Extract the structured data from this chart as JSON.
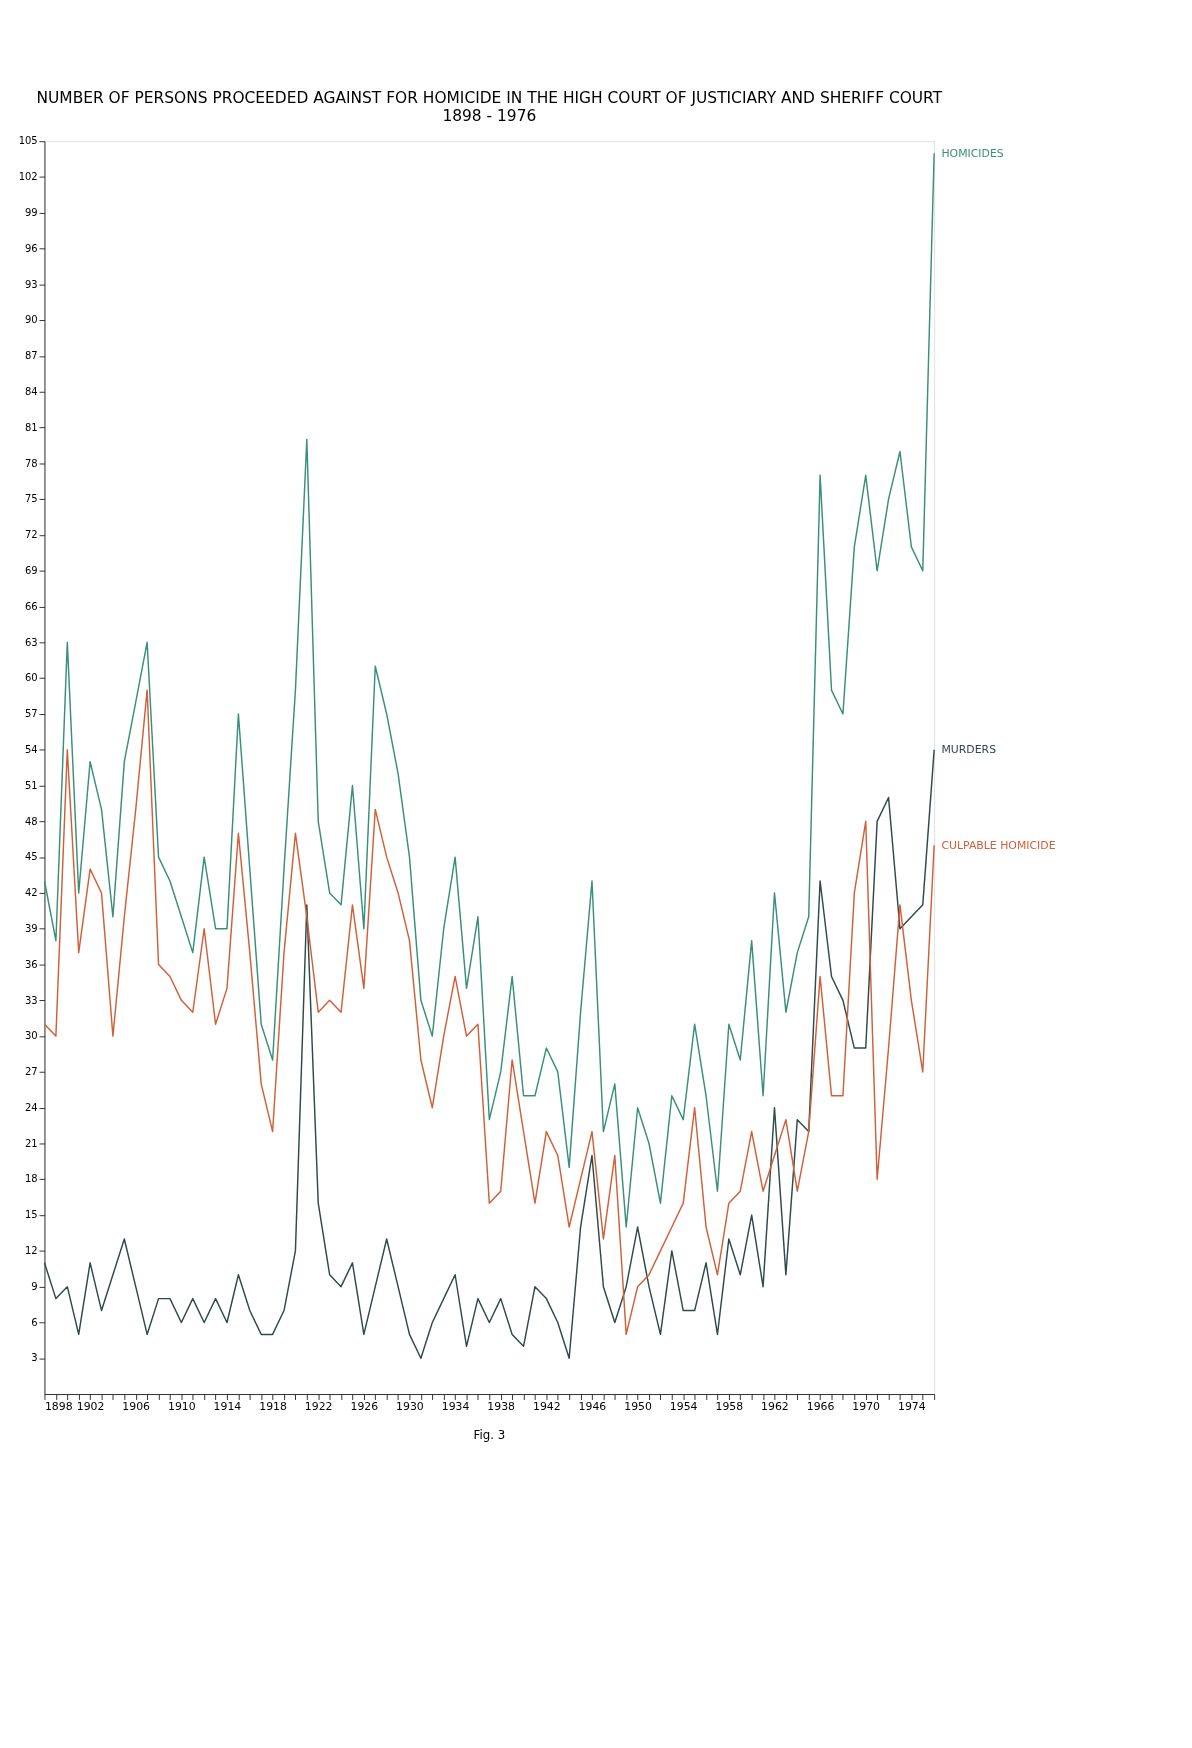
{
  "chart_data": {
    "type": "line",
    "title": "NUMBER OF PERSONS PROCEEDED AGAINST FOR HOMICIDE IN THE HIGH COURT OF JUSTICIARY AND SHERIFF COURT",
    "subtitle": "1898 - 1976",
    "x": [
      1898,
      1899,
      1900,
      1901,
      1902,
      1903,
      1904,
      1905,
      1906,
      1907,
      1908,
      1909,
      1910,
      1911,
      1912,
      1913,
      1914,
      1915,
      1916,
      1917,
      1918,
      1919,
      1920,
      1921,
      1922,
      1923,
      1924,
      1925,
      1926,
      1927,
      1928,
      1929,
      1930,
      1931,
      1932,
      1933,
      1934,
      1935,
      1936,
      1937,
      1938,
      1939,
      1940,
      1941,
      1942,
      1943,
      1944,
      1945,
      1946,
      1947,
      1948,
      1949,
      1950,
      1951,
      1952,
      1953,
      1954,
      1955,
      1956,
      1957,
      1958,
      1959,
      1960,
      1961,
      1962,
      1963,
      1964,
      1965,
      1966,
      1967,
      1968,
      1969,
      1970,
      1971,
      1972,
      1973,
      1974,
      1975,
      1976
    ],
    "series": [
      {
        "name": "HOMICIDES",
        "color": "#3a8f7a",
        "values": [
          43,
          38,
          63,
          42,
          53,
          49,
          40,
          53,
          58,
          63,
          45,
          43,
          40,
          37,
          45,
          39,
          39,
          57,
          44,
          31,
          28,
          44,
          59,
          80,
          48,
          42,
          41,
          51,
          39,
          61,
          57,
          52,
          45,
          33,
          30,
          39,
          45,
          34,
          40,
          23,
          27,
          35,
          25,
          25,
          29,
          27,
          19,
          32,
          43,
          22,
          26,
          14,
          24,
          21,
          16,
          25,
          23,
          31,
          25,
          17,
          31,
          28,
          38,
          25,
          42,
          32,
          37,
          40,
          77,
          59,
          57,
          71,
          77,
          69,
          75,
          79,
          71,
          69,
          104
        ]
      },
      {
        "name": "MURDERS",
        "color": "#2f4a4a",
        "values": [
          11,
          8,
          9,
          5,
          11,
          7,
          10,
          13,
          9,
          5,
          8,
          8,
          6,
          8,
          6,
          8,
          6,
          10,
          7,
          5,
          5,
          7,
          12,
          41,
          16,
          10,
          9,
          11,
          5,
          9,
          13,
          9,
          5,
          3,
          6,
          8,
          10,
          4,
          8,
          6,
          8,
          5,
          4,
          9,
          8,
          6,
          3,
          14,
          20,
          9,
          6,
          9,
          14,
          9,
          5,
          12,
          7,
          7,
          11,
          5,
          13,
          10,
          15,
          9,
          24,
          10,
          23,
          22,
          43,
          35,
          33,
          29,
          29,
          48,
          50,
          39,
          40,
          41,
          54
        ]
      },
      {
        "name": "CULPABLE HOMICIDE",
        "color": "#d0603a",
        "values": [
          31,
          30,
          54,
          37,
          44,
          42,
          30,
          40,
          49,
          59,
          36,
          35,
          33,
          32,
          39,
          31,
          34,
          47,
          37,
          26,
          22,
          37,
          47,
          40,
          32,
          33,
          32,
          41,
          34,
          49,
          45,
          42,
          38,
          28,
          24,
          30,
          35,
          30,
          31,
          16,
          17,
          28,
          22,
          16,
          22,
          20,
          14,
          18,
          22,
          13,
          20,
          5,
          9,
          10,
          12,
          14,
          16,
          24,
          14,
          10,
          16,
          17,
          22,
          17,
          20,
          23,
          17,
          22,
          35,
          25,
          25,
          42,
          48,
          18,
          29,
          41,
          33,
          27,
          46
        ]
      }
    ],
    "xlim": [
      1898,
      1976
    ],
    "xticks": [
      1898,
      {
        "value": 1899,
        "label": null
      },
      {
        "value": 1900,
        "label": null
      },
      {
        "value": 1901,
        "label": null
      },
      1902,
      {
        "value": 1903,
        "label": null
      },
      {
        "value": 1904,
        "label": null
      },
      {
        "value": 1905,
        "label": null
      },
      1906,
      {
        "value": 1907,
        "label": null
      },
      {
        "value": 1908,
        "label": null
      },
      {
        "value": 1909,
        "label": null
      },
      1910,
      {
        "value": 1911,
        "label": null
      },
      {
        "value": 1912,
        "label": null
      },
      {
        "value": 1913,
        "label": null
      },
      1914,
      {
        "value": 1915,
        "label": null
      },
      {
        "value": 1916,
        "label": null
      },
      {
        "value": 1917,
        "label": null
      },
      1918,
      {
        "value": 1919,
        "label": null
      },
      {
        "value": 1920,
        "label": null
      },
      {
        "value": 1921,
        "label": null
      },
      1922,
      {
        "value": 1923,
        "label": null
      },
      {
        "value": 1924,
        "label": null
      },
      {
        "value": 1925,
        "label": null
      },
      1926,
      {
        "value": 1927,
        "label": null
      },
      {
        "value": 1928,
        "label": null
      },
      {
        "value": 1929,
        "label": null
      },
      1930,
      {
        "value": 1931,
        "label": null
      },
      {
        "value": 1932,
        "label": null
      },
      {
        "value": 1933,
        "label": null
      },
      1934,
      {
        "value": 1935,
        "label": null
      },
      {
        "value": 1936,
        "label": null
      },
      {
        "value": 1937,
        "label": null
      },
      1938,
      {
        "value": 1939,
        "label": null
      },
      {
        "value": 1940,
        "label": null
      },
      {
        "value": 1941,
        "label": null
      },
      1942,
      {
        "value": 1943,
        "label": null
      },
      {
        "value": 1944,
        "label": null
      },
      {
        "value": 1945,
        "label": null
      },
      1946,
      {
        "value": 1947,
        "label": null
      },
      {
        "value": 1948,
        "label": null
      },
      {
        "value": 1949,
        "label": null
      },
      1950,
      {
        "value": 1951,
        "label": null
      },
      {
        "value": 1952,
        "label": null
      },
      {
        "value": 1953,
        "label": null
      },
      1954,
      {
        "value": 1955,
        "label": null
      },
      {
        "value": 1956,
        "label": null
      },
      {
        "value": 1957,
        "label": null
      },
      1958,
      {
        "value": 1959,
        "label": null
      },
      {
        "value": 1960,
        "label": null
      },
      {
        "value": 1961,
        "label": null
      },
      1962,
      {
        "value": 1963,
        "label": null
      },
      {
        "value": 1964,
        "label": null
      },
      {
        "value": 1965,
        "label": null
      },
      1966,
      {
        "value": 1967,
        "label": null
      },
      {
        "value": 1968,
        "label": null
      },
      {
        "value": 1969,
        "label": null
      },
      1970,
      {
        "value": 1971,
        "label": null
      },
      {
        "value": 1972,
        "label": null
      },
      {
        "value": 1973,
        "label": null
      },
      1974,
      {
        "value": 1975,
        "label": null
      },
      {
        "value": 1976,
        "label": null
      }
    ],
    "ylim": [
      0,
      105
    ],
    "yticks": [
      3,
      6,
      9,
      12,
      15,
      18,
      21,
      24,
      27,
      30,
      33,
      36,
      39,
      42,
      45,
      48,
      51,
      54,
      57,
      60,
      63,
      66,
      69,
      72,
      75,
      78,
      81,
      84,
      87,
      90,
      93,
      96,
      99,
      102,
      105
    ],
    "grid": false,
    "marker": "none",
    "line_style": "solid",
    "annotations": [
      "Fig. 3"
    ]
  }
}
